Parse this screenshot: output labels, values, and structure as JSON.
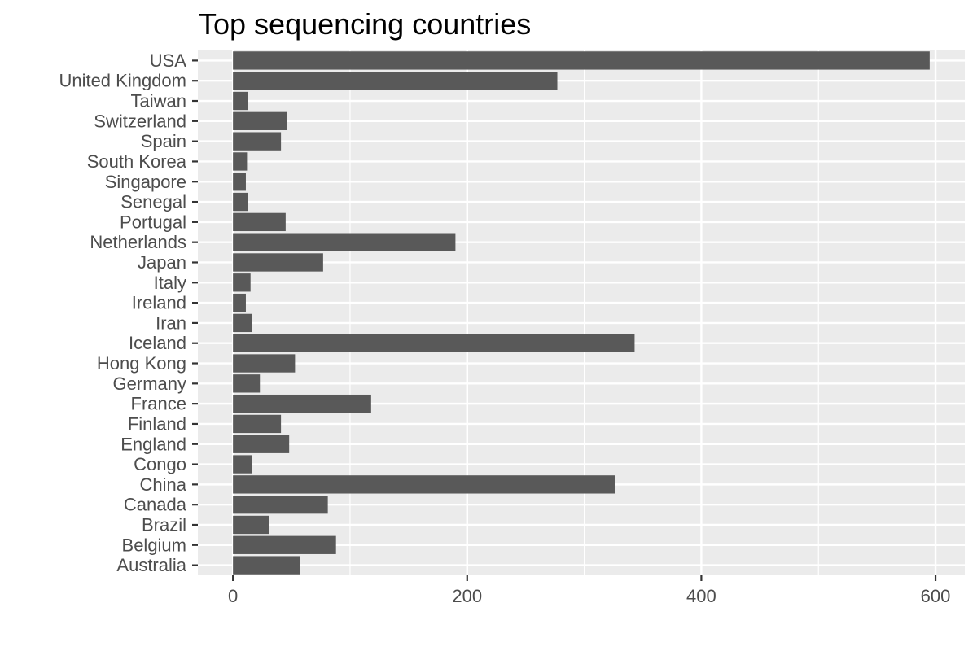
{
  "chart_data": {
    "type": "bar",
    "orientation": "horizontal",
    "title": "Top sequencing countries",
    "xlabel": "",
    "ylabel": "",
    "categories": [
      "USA",
      "United Kingdom",
      "Taiwan",
      "Switzerland",
      "Spain",
      "South Korea",
      "Singapore",
      "Senegal",
      "Portugal",
      "Netherlands",
      "Japan",
      "Italy",
      "Ireland",
      "Iran",
      "Iceland",
      "Hong Kong",
      "Germany",
      "France",
      "Finland",
      "England",
      "Congo",
      "China",
      "Canada",
      "Brazil",
      "Belgium",
      "Australia"
    ],
    "values": [
      595,
      277,
      13,
      46,
      41,
      12,
      11,
      13,
      45,
      190,
      77,
      15,
      11,
      16,
      343,
      53,
      23,
      118,
      41,
      48,
      16,
      326,
      81,
      31,
      88,
      57
    ],
    "xlim": [
      -30,
      625
    ],
    "xticks": [
      0,
      200,
      400,
      600
    ],
    "xtick_labels": [
      "0",
      "200",
      "400",
      "600"
    ],
    "grid": true,
    "panel_background": "#ebebeb",
    "bar_color": "#595959",
    "grid_color": "#ffffff"
  }
}
